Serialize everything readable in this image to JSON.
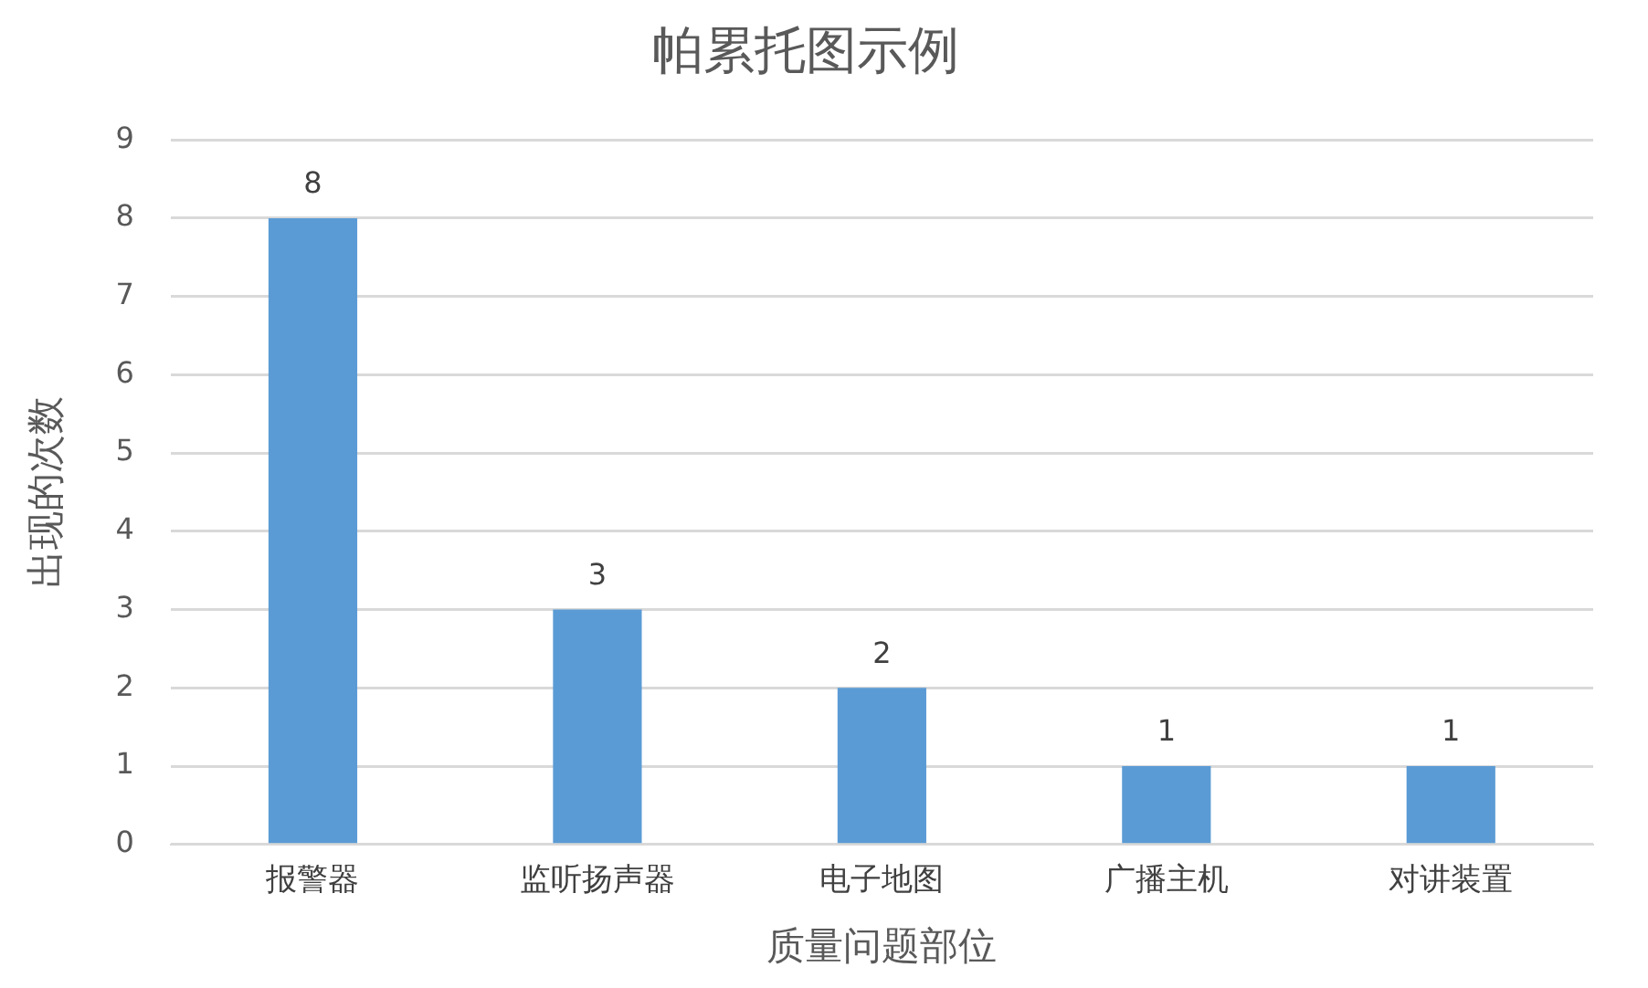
{
  "chart_data": {
    "type": "bar",
    "title": "帕累托图示例",
    "xlabel": "质量问题部位",
    "ylabel": "出现的次数",
    "categories": [
      "报警器",
      "监听扬声器",
      "电子地图",
      "广播主机",
      "对讲装置"
    ],
    "values": [
      8,
      3,
      2,
      1,
      1
    ],
    "color": "#5b9bd5",
    "ylim": [
      0,
      9
    ],
    "yticks": [
      0,
      1,
      2,
      3,
      4,
      5,
      6,
      7,
      8,
      9
    ],
    "grid": "y",
    "data_labels": true,
    "legend": false
  }
}
